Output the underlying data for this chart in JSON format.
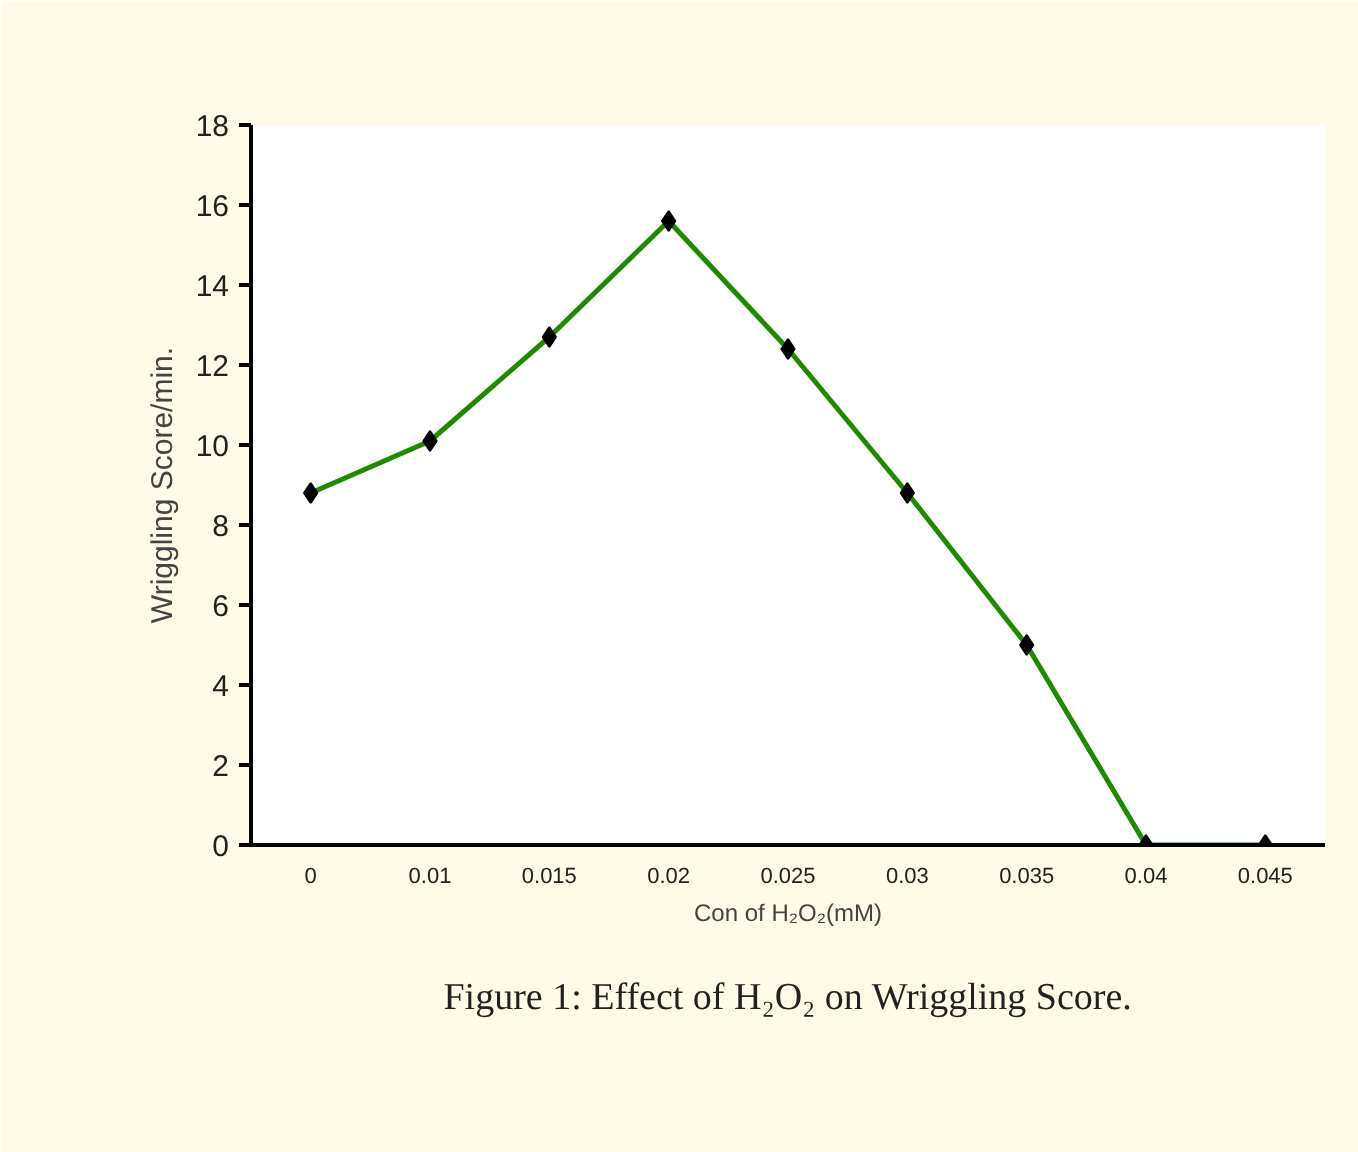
{
  "chart_data": {
    "type": "line",
    "xlabel": "Con of H₂O₂(mM)",
    "ylabel": "Wriggling Score/min.",
    "categories": [
      "0",
      "0.01",
      "0.015",
      "0.02",
      "0.025",
      "0.03",
      "0.035",
      "0.04",
      "0.045"
    ],
    "series": [
      {
        "color": "#1f8a00",
        "values": [
          8.8,
          10.1,
          12.7,
          15.6,
          12.4,
          8.8,
          5.0,
          0,
          0
        ]
      }
    ],
    "ylim": [
      0,
      18
    ],
    "yticks": [
      0,
      2,
      4,
      6,
      8,
      10,
      12,
      14,
      16,
      18
    ],
    "marker": "diamond",
    "line_style": "solid",
    "grid": false,
    "annotations": [
      "Figure 1: Effect of H₂O₂ on Wriggling Score."
    ]
  }
}
